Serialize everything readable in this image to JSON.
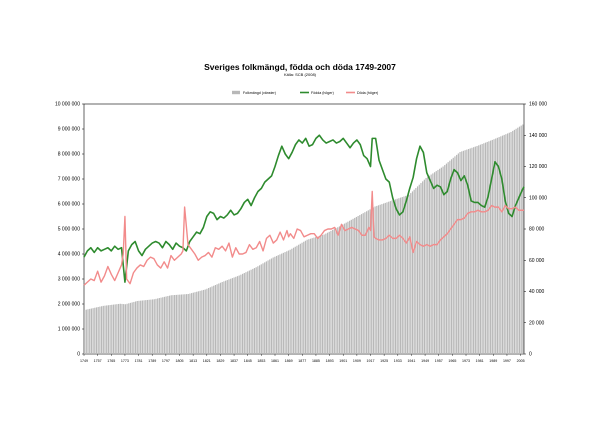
{
  "chart_data": {
    "type": "line",
    "title": "Sveriges folkmängd, födda och döda 1749-2007",
    "subtitle": "Källa: SCB (2008)",
    "legend": {
      "placement": "top-center",
      "entries": [
        "Folkmängd (vänster)",
        "Födda (höger)",
        "Döda (höger)"
      ]
    },
    "y_left": {
      "min": 0,
      "max": 10000000,
      "step": 1000000,
      "tick_labels": [
        "0",
        "1 000 000",
        "2 000 000",
        "3 000 000",
        "4 000 000",
        "5 000 000",
        "6 000 000",
        "7 000 000",
        "8 000 000",
        "9 000 000",
        "10 000 000"
      ]
    },
    "y_right": {
      "min": 0,
      "max": 160000,
      "step": 20000,
      "tick_labels": [
        "0",
        "20 000",
        "40 000",
        "60 000",
        "80 000",
        "100 000",
        "120 000",
        "140 000",
        "160 000"
      ]
    },
    "x_tick_labels": [
      "1749",
      "1757",
      "1765",
      "1773",
      "1781",
      "1789",
      "1797",
      "1805",
      "1813",
      "1821",
      "1829",
      "1837",
      "1845",
      "1853",
      "1861",
      "1869",
      "1877",
      "1885",
      "1893",
      "1901",
      "1909",
      "1917",
      "1925",
      "1933",
      "1941",
      "1949",
      "1957",
      "1965",
      "1973",
      "1981",
      "1989",
      "1997",
      "2005"
    ],
    "x_range": [
      1749,
      2007
    ],
    "grid": false,
    "series": [
      {
        "name": "Folkmängd (vänster)",
        "kind": "bar",
        "axis": "left",
        "color": "#b8b8b8",
        "x": [
          1749,
          1760,
          1770,
          1773,
          1780,
          1790,
          1800,
          1810,
          1820,
          1830,
          1840,
          1850,
          1860,
          1870,
          1880,
          1890,
          1900,
          1910,
          1920,
          1930,
          1940,
          1950,
          1960,
          1970,
          1980,
          1990,
          2000,
          2007
        ],
        "values": [
          1760000,
          1925000,
          2010000,
          1990000,
          2120000,
          2190000,
          2350000,
          2400000,
          2580000,
          2880000,
          3140000,
          3470000,
          3860000,
          4170000,
          4570000,
          4780000,
          5140000,
          5520000,
          5900000,
          6140000,
          6370000,
          7040000,
          7500000,
          8080000,
          8320000,
          8590000,
          8880000,
          9180000
        ]
      },
      {
        "name": "Födda (höger)",
        "kind": "line",
        "axis": "right",
        "color": "#2e8b2e",
        "x": [
          1749,
          1751,
          1753,
          1755,
          1757,
          1759,
          1761,
          1763,
          1765,
          1767,
          1769,
          1771,
          1773,
          1775,
          1777,
          1779,
          1781,
          1783,
          1785,
          1787,
          1789,
          1791,
          1793,
          1795,
          1797,
          1799,
          1801,
          1803,
          1805,
          1807,
          1809,
          1811,
          1813,
          1815,
          1817,
          1819,
          1821,
          1823,
          1825,
          1827,
          1829,
          1831,
          1833,
          1835,
          1837,
          1839,
          1841,
          1843,
          1845,
          1847,
          1849,
          1851,
          1853,
          1855,
          1857,
          1859,
          1861,
          1863,
          1865,
          1867,
          1869,
          1871,
          1873,
          1875,
          1877,
          1879,
          1881,
          1883,
          1885,
          1887,
          1889,
          1891,
          1893,
          1895,
          1897,
          1899,
          1901,
          1903,
          1905,
          1907,
          1909,
          1911,
          1913,
          1915,
          1917,
          1918,
          1920,
          1922,
          1924,
          1926,
          1928,
          1930,
          1932,
          1934,
          1936,
          1938,
          1940,
          1942,
          1944,
          1946,
          1948,
          1950,
          1952,
          1954,
          1956,
          1958,
          1960,
          1962,
          1964,
          1966,
          1968,
          1970,
          1972,
          1974,
          1976,
          1978,
          1980,
          1982,
          1984,
          1986,
          1988,
          1990,
          1992,
          1994,
          1996,
          1998,
          2000,
          2002,
          2004,
          2006,
          2007
        ],
        "values": [
          62000,
          66000,
          68000,
          65000,
          68000,
          66000,
          67000,
          68000,
          66000,
          69000,
          67000,
          68000,
          46000,
          66000,
          70000,
          72000,
          66000,
          63000,
          67000,
          69000,
          71000,
          72000,
          71000,
          68000,
          72000,
          70000,
          67000,
          71000,
          69000,
          68000,
          66000,
          72000,
          75000,
          78000,
          77000,
          81000,
          88000,
          91000,
          90000,
          86000,
          88000,
          87000,
          89000,
          92000,
          89000,
          90000,
          93000,
          97000,
          99000,
          95000,
          100000,
          104000,
          106000,
          110000,
          112000,
          114000,
          120000,
          127000,
          133000,
          128000,
          125000,
          129000,
          134000,
          137000,
          135000,
          138000,
          133000,
          134000,
          138000,
          140000,
          137000,
          135000,
          136000,
          137000,
          135000,
          136000,
          138000,
          135000,
          132000,
          135000,
          137000,
          134000,
          127000,
          125000,
          120000,
          138000,
          138000,
          124000,
          118000,
          112000,
          110000,
          100000,
          93000,
          89000,
          91000,
          98000,
          106000,
          113000,
          125000,
          133000,
          129000,
          116000,
          111000,
          106000,
          108000,
          107000,
          102000,
          104000,
          112000,
          118000,
          116000,
          111000,
          114000,
          108000,
          98000,
          97000,
          97000,
          95000,
          94000,
          101000,
          112000,
          123000,
          120000,
          112000,
          98000,
          90000,
          88000,
          95000,
          100000,
          105000,
          107000
        ]
      },
      {
        "name": "Döda (höger)",
        "kind": "line",
        "axis": "right",
        "color": "#f28b8b",
        "x": [
          1749,
          1751,
          1753,
          1755,
          1757,
          1759,
          1761,
          1763,
          1765,
          1767,
          1769,
          1771,
          1772,
          1773,
          1774,
          1776,
          1778,
          1780,
          1782,
          1784,
          1786,
          1788,
          1790,
          1792,
          1794,
          1796,
          1798,
          1800,
          1802,
          1806,
          1807,
          1808,
          1810,
          1812,
          1814,
          1816,
          1818,
          1820,
          1822,
          1824,
          1826,
          1828,
          1830,
          1832,
          1834,
          1836,
          1838,
          1840,
          1842,
          1844,
          1846,
          1848,
          1850,
          1852,
          1854,
          1856,
          1858,
          1860,
          1862,
          1864,
          1866,
          1868,
          1869,
          1870,
          1872,
          1874,
          1876,
          1878,
          1880,
          1882,
          1884,
          1886,
          1888,
          1890,
          1892,
          1894,
          1896,
          1898,
          1900,
          1902,
          1904,
          1906,
          1908,
          1910,
          1912,
          1914,
          1916,
          1917,
          1918,
          1919,
          1920,
          1922,
          1924,
          1926,
          1928,
          1930,
          1932,
          1934,
          1936,
          1938,
          1940,
          1942,
          1944,
          1946,
          1948,
          1950,
          1952,
          1954,
          1956,
          1958,
          1960,
          1962,
          1964,
          1966,
          1968,
          1970,
          1972,
          1974,
          1976,
          1978,
          1980,
          1982,
          1984,
          1986,
          1988,
          1990,
          1992,
          1994,
          1996,
          1998,
          2000,
          2002,
          2004,
          2006,
          2007
        ],
        "values": [
          44000,
          46000,
          48000,
          47000,
          53000,
          46000,
          50000,
          56000,
          51000,
          47000,
          52000,
          57000,
          64000,
          88000,
          48000,
          45000,
          52000,
          55000,
          57000,
          56000,
          60000,
          62000,
          61000,
          57000,
          55000,
          59000,
          55000,
          63000,
          60000,
          64000,
          66000,
          94000,
          70000,
          67000,
          64000,
          60000,
          62000,
          63000,
          65000,
          62000,
          68000,
          67000,
          69000,
          66000,
          71000,
          62000,
          68000,
          64000,
          64000,
          65000,
          70000,
          67000,
          68000,
          72000,
          66000,
          74000,
          76000,
          71000,
          73000,
          78000,
          73000,
          79000,
          75000,
          77000,
          74000,
          80000,
          79000,
          75000,
          76000,
          77000,
          77000,
          74000,
          76000,
          79000,
          80000,
          80000,
          81000,
          76000,
          83000,
          79000,
          80000,
          81000,
          80000,
          79000,
          76000,
          76000,
          81000,
          79000,
          104000,
          75000,
          74000,
          73000,
          73000,
          74000,
          76000,
          74000,
          74000,
          76000,
          74000,
          71000,
          75000,
          65000,
          72000,
          70000,
          69000,
          70000,
          69000,
          70000,
          70000,
          73000,
          75000,
          77000,
          80000,
          83000,
          86000,
          86000,
          87000,
          90000,
          91000,
          91000,
          92000,
          91000,
          91000,
          92000,
          95000,
          94000,
          94000,
          91000,
          95000,
          93000,
          93000,
          94000,
          92000,
          92000,
          92000
        ]
      }
    ]
  }
}
